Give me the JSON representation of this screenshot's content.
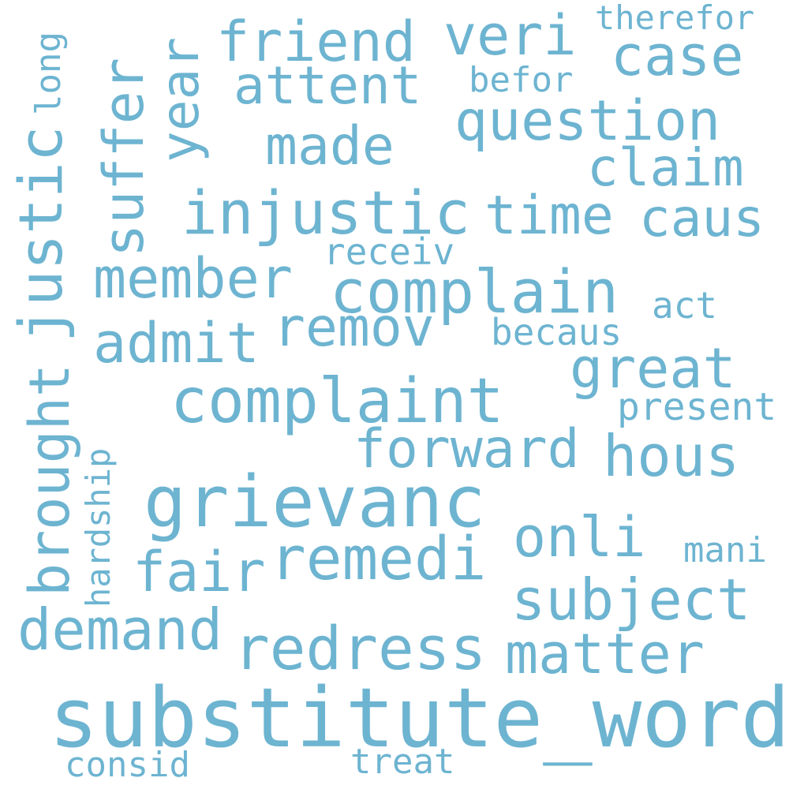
{
  "color": "#6db4d1",
  "words": [
    {
      "text": "substitute_word"
    },
    {
      "text": "grievanc"
    },
    {
      "text": "complaint"
    },
    {
      "text": "complain"
    },
    {
      "text": "injustic"
    },
    {
      "text": "redress"
    },
    {
      "text": "remedi"
    },
    {
      "text": "justic"
    },
    {
      "text": "brought"
    },
    {
      "text": "question"
    },
    {
      "text": "member"
    },
    {
      "text": "forward"
    },
    {
      "text": "hous"
    },
    {
      "text": "subject"
    },
    {
      "text": "matter"
    },
    {
      "text": "demand"
    },
    {
      "text": "suffer"
    },
    {
      "text": "year"
    },
    {
      "text": "friend"
    },
    {
      "text": "veri"
    },
    {
      "text": "case"
    },
    {
      "text": "attent"
    },
    {
      "text": "made"
    },
    {
      "text": "claim"
    },
    {
      "text": "time"
    },
    {
      "text": "caus"
    },
    {
      "text": "admit"
    },
    {
      "text": "remov"
    },
    {
      "text": "great"
    },
    {
      "text": "onli"
    },
    {
      "text": "fair"
    },
    {
      "text": "present"
    },
    {
      "text": "becaus"
    },
    {
      "text": "receiv"
    },
    {
      "text": "act"
    },
    {
      "text": "befor"
    },
    {
      "text": "therefor"
    },
    {
      "text": "long"
    },
    {
      "text": "hardship"
    },
    {
      "text": "mani"
    },
    {
      "text": "consid"
    },
    {
      "text": "treat"
    }
  ]
}
